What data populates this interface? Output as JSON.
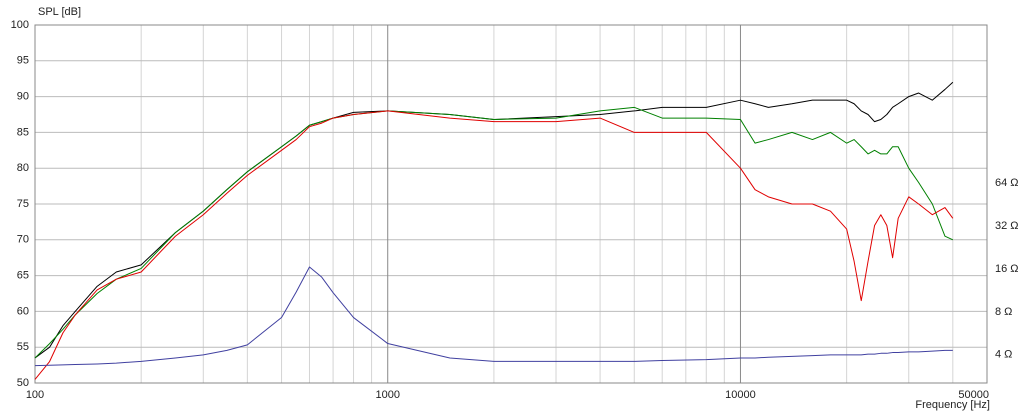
{
  "chart_data": {
    "type": "line",
    "y_label": "SPL [dB]",
    "x_label": "Frequency [Hz]",
    "xlog": true,
    "y2log": true,
    "grid": true,
    "xlim": [
      100,
      50000
    ],
    "xticks": [
      100,
      1000,
      10000,
      50000
    ],
    "xminor": [
      200,
      300,
      400,
      500,
      600,
      700,
      800,
      900,
      2000,
      3000,
      4000,
      5000,
      6000,
      7000,
      8000,
      9000,
      20000,
      30000,
      40000
    ],
    "ylim": [
      50,
      100
    ],
    "yticks": [
      50,
      55,
      60,
      65,
      70,
      75,
      80,
      85,
      90,
      95,
      100
    ],
    "y2lim": [
      2.54,
      817
    ],
    "y2ticks": [
      {
        "value": 4,
        "label": "4 Ω"
      },
      {
        "value": 8,
        "label": "8 Ω"
      },
      {
        "value": 16,
        "label": "16 Ω"
      },
      {
        "value": 32,
        "label": "32 Ω"
      },
      {
        "value": 64,
        "label": "64 Ω"
      }
    ],
    "x": [
      100,
      110,
      120,
      130,
      150,
      170,
      200,
      250,
      300,
      350,
      400,
      500,
      550,
      600,
      650,
      700,
      800,
      1000,
      1500,
      2000,
      3000,
      4000,
      5000,
      6000,
      8000,
      10000,
      11000,
      12000,
      14000,
      16000,
      18000,
      20000,
      21000,
      22000,
      23000,
      24000,
      25000,
      26000,
      27000,
      28000,
      30000,
      32000,
      35000,
      38000,
      40000
    ],
    "series": [
      {
        "color": "#000000",
        "values": [
          53.5,
          55,
          58,
          60,
          63.5,
          65.5,
          66.5,
          71,
          74,
          77,
          79.5,
          83,
          84.5,
          86,
          86.5,
          87,
          87.8,
          88,
          87.5,
          86.8,
          87.2,
          87.5,
          88,
          88.5,
          88.5,
          89.5,
          89,
          88.5,
          89,
          89.5,
          89.5,
          89.5,
          89,
          88,
          87.5,
          86.5,
          86.8,
          87.5,
          88.5,
          89,
          90,
          90.5,
          89.5,
          91,
          92
        ]
      },
      {
        "color": "#008000",
        "values": [
          53.5,
          55.5,
          57.5,
          59.5,
          62.5,
          64.5,
          66,
          71,
          74,
          77,
          79.5,
          83,
          84.5,
          86,
          86.5,
          87,
          87.5,
          88,
          87.5,
          86.8,
          87,
          88,
          88.5,
          87,
          87,
          86.8,
          83.5,
          84,
          85,
          84,
          85,
          83.5,
          84,
          83,
          82,
          82.5,
          82,
          82,
          83,
          83,
          80,
          78,
          75,
          70.5,
          70
        ]
      },
      {
        "color": "#e00000",
        "values": [
          50.5,
          53,
          57,
          59.5,
          63,
          64.5,
          65.5,
          70.5,
          73.5,
          76.5,
          79,
          82.5,
          84,
          85.8,
          86.3,
          87,
          87.5,
          88,
          87,
          86.5,
          86.5,
          87,
          85,
          85,
          85,
          80,
          77,
          76,
          75,
          75,
          74,
          71.5,
          67,
          61.5,
          67,
          72,
          73.5,
          72,
          67.5,
          73,
          76,
          75,
          73.5,
          74.5,
          73
        ]
      },
      {
        "color": "#4040a0",
        "axis": "y2",
        "values": [
          3.36,
          3.38,
          3.4,
          3.42,
          3.45,
          3.5,
          3.6,
          3.8,
          4.0,
          4.3,
          4.7,
          7.3,
          11,
          16.5,
          14,
          10.9,
          7.3,
          4.8,
          3.8,
          3.6,
          3.6,
          3.6,
          3.6,
          3.65,
          3.7,
          3.8,
          3.8,
          3.85,
          3.9,
          3.95,
          4.0,
          4.0,
          4.0,
          4.0,
          4.05,
          4.05,
          4.1,
          4.1,
          4.15,
          4.15,
          4.2,
          4.2,
          4.25,
          4.3,
          4.3
        ]
      }
    ]
  }
}
